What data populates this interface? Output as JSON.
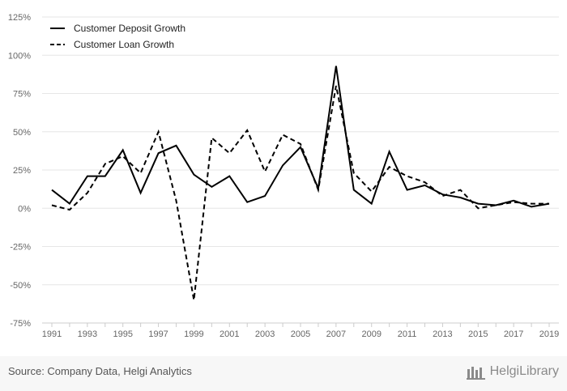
{
  "chart_data": {
    "type": "line",
    "title": "",
    "xlabel": "",
    "ylabel": "",
    "categories": [
      "1991",
      "1992",
      "1993",
      "1994",
      "1995",
      "1996",
      "1997",
      "1998",
      "1999",
      "2000",
      "2001",
      "2002",
      "2003",
      "2004",
      "2005",
      "2006",
      "2007",
      "2008",
      "2009",
      "2010",
      "2011",
      "2012",
      "2013",
      "2014",
      "2015",
      "2016",
      "2017",
      "2018",
      "2019"
    ],
    "x_tick_labels": [
      "1991",
      "1993",
      "1995",
      "1997",
      "1999",
      "2001",
      "2003",
      "2005",
      "2007",
      "2009",
      "2011",
      "2013",
      "2015",
      "2017",
      "2019"
    ],
    "y_ticks": [
      125,
      100,
      75,
      50,
      25,
      0,
      -25,
      -50,
      -75
    ],
    "y_tick_labels": [
      "125%",
      "100%",
      "75%",
      "50%",
      "25%",
      "0%",
      "-25%",
      "-50%",
      "-75%"
    ],
    "ylim": [
      -75,
      125
    ],
    "grid": true,
    "legend_position": "top-left",
    "series": [
      {
        "name": "Customer Deposit Growth",
        "style": "solid",
        "color": "#000000",
        "values": [
          12,
          3,
          21,
          21,
          38,
          10,
          36,
          41,
          22,
          14,
          21,
          4,
          8,
          28,
          40,
          13,
          93,
          12,
          3,
          37,
          12,
          15,
          9,
          7,
          3,
          2,
          5,
          1,
          3
        ]
      },
      {
        "name": "Customer Loan Growth",
        "style": "dashed",
        "color": "#000000",
        "values": [
          2,
          -1,
          10,
          29,
          34,
          23,
          50,
          5,
          -60,
          46,
          36,
          51,
          24,
          48,
          42,
          12,
          80,
          23,
          11,
          27,
          21,
          17,
          8,
          12,
          0,
          2,
          4,
          3,
          3
        ]
      }
    ]
  },
  "footer": {
    "source": "Source: Company Data, Helgi Analytics",
    "brand": "HelgiLibrary",
    "brand_icon": "library-logo-icon"
  }
}
